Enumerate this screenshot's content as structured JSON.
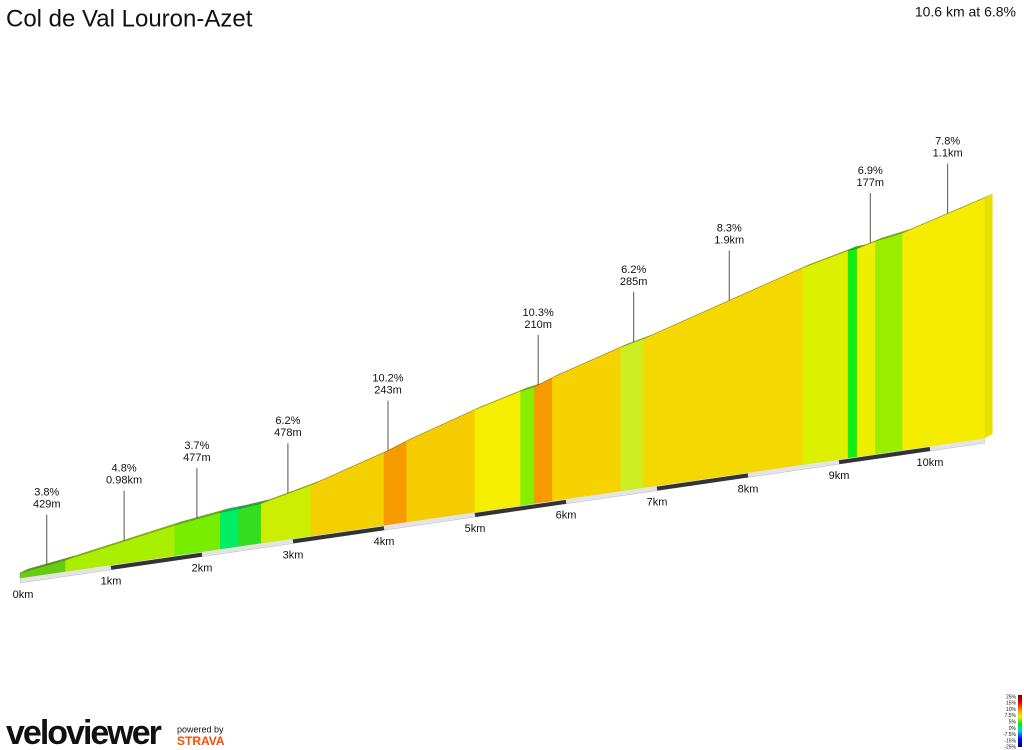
{
  "chart_data": {
    "type": "profile",
    "title": "Col de Val Louron-Azet",
    "subtitle": "10.6 km at 6.8%",
    "xlim": [
      0,
      10.6
    ],
    "xticks": [
      {
        "value": 0,
        "label": "0km"
      },
      {
        "value": 1,
        "label": "1km"
      },
      {
        "value": 2,
        "label": "2km"
      },
      {
        "value": 3,
        "label": "3km"
      },
      {
        "value": 4,
        "label": "4km"
      },
      {
        "value": 5,
        "label": "5km"
      },
      {
        "value": 6,
        "label": "6km"
      },
      {
        "value": 7,
        "label": "7km"
      },
      {
        "value": 8,
        "label": "8km"
      },
      {
        "value": 9,
        "label": "9km"
      },
      {
        "value": 10,
        "label": "10km"
      }
    ],
    "segments": [
      {
        "start": 0,
        "end": 0.5,
        "grade": 3.8,
        "color": "#66cc11"
      },
      {
        "start": 0.5,
        "end": 1.7,
        "grade": 4.8,
        "color": "#aaee00"
      },
      {
        "start": 1.7,
        "end": 2.2,
        "grade": 3.7,
        "color": "#77ee00"
      },
      {
        "start": 2.2,
        "end": 2.4,
        "grade": 1.5,
        "color": "#00ee66"
      },
      {
        "start": 2.4,
        "end": 2.65,
        "grade": 2.5,
        "color": "#33dd22"
      },
      {
        "start": 2.65,
        "end": 3.2,
        "grade": 6.2,
        "color": "#ccee00"
      },
      {
        "start": 3.2,
        "end": 4.0,
        "grade": 8.3,
        "color": "#f5d000"
      },
      {
        "start": 4.0,
        "end": 4.25,
        "grade": 10.2,
        "color": "#f59b00"
      },
      {
        "start": 4.25,
        "end": 5.0,
        "grade": 8.6,
        "color": "#f5cc00"
      },
      {
        "start": 5.0,
        "end": 5.5,
        "grade": 7.2,
        "color": "#f5ee00"
      },
      {
        "start": 5.5,
        "end": 5.65,
        "grade": 4.5,
        "color": "#88ee00"
      },
      {
        "start": 5.65,
        "end": 5.85,
        "grade": 10.3,
        "color": "#f59b00"
      },
      {
        "start": 5.85,
        "end": 6.6,
        "grade": 8.2,
        "color": "#f5d200"
      },
      {
        "start": 6.6,
        "end": 6.85,
        "grade": 6.2,
        "color": "#ccee22"
      },
      {
        "start": 6.85,
        "end": 8.6,
        "grade": 8.3,
        "color": "#f5d800"
      },
      {
        "start": 8.6,
        "end": 9.1,
        "grade": 6.5,
        "color": "#ddf000"
      },
      {
        "start": 9.1,
        "end": 9.2,
        "grade": 2.0,
        "color": "#11ee11"
      },
      {
        "start": 9.2,
        "end": 9.4,
        "grade": 6.9,
        "color": "#eeee00"
      },
      {
        "start": 9.4,
        "end": 9.7,
        "grade": 4.5,
        "color": "#99ee00"
      },
      {
        "start": 9.7,
        "end": 10.6,
        "grade": 7.8,
        "color": "#f5ec00"
      }
    ],
    "annotations": [
      {
        "x": 0.25,
        "grade": "3.8%",
        "length": "429m"
      },
      {
        "x": 1.1,
        "grade": "4.8%",
        "length": "0.98km"
      },
      {
        "x": 1.9,
        "grade": "3.7%",
        "length": "477m"
      },
      {
        "x": 2.9,
        "grade": "6.2%",
        "length": "478m"
      },
      {
        "x": 4.0,
        "grade": "10.2%",
        "length": "243m"
      },
      {
        "x": 5.65,
        "grade": "10.3%",
        "length": "210m"
      },
      {
        "x": 6.7,
        "grade": "6.2%",
        "length": "285m"
      },
      {
        "x": 7.75,
        "grade": "8.3%",
        "length": "1.9km"
      },
      {
        "x": 9.3,
        "grade": "6.9%",
        "length": "177m"
      },
      {
        "x": 10.15,
        "grade": "7.8%",
        "length": "1.1km"
      }
    ],
    "legend_labels": [
      "25%",
      "15%",
      "10%",
      "7.5%",
      "5%",
      "0%",
      "-7.5%",
      "-15%",
      "-25%"
    ],
    "branding": {
      "logo": "veloviewer",
      "powered": "powered by",
      "strava": "STRAVA"
    }
  }
}
